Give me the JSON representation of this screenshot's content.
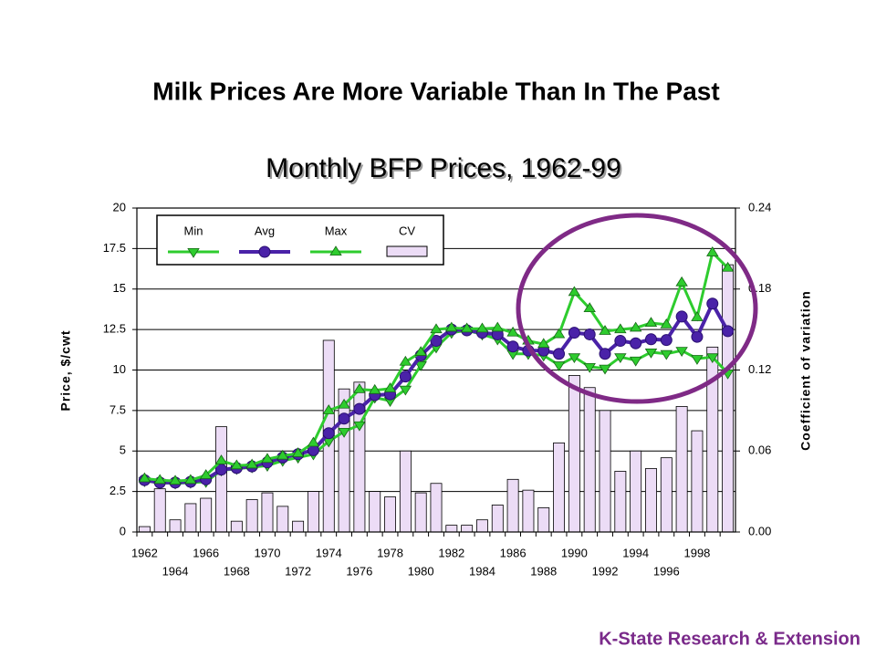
{
  "title": "Milk Prices Are More Variable Than In The Past",
  "footer": "K-State Research & Extension",
  "chart_data": {
    "type": "combo",
    "title": "Monthly BFP Prices, 1962-99",
    "y_label": "Price, $/cwt",
    "y2_label": "Coefficient of variation",
    "categories": [
      "1962",
      null,
      "1964",
      null,
      "1966",
      null,
      "1968",
      null,
      "1970",
      null,
      "1972",
      null,
      "1974",
      null,
      "1976",
      null,
      "1978",
      null,
      "1980",
      null,
      "1982",
      null,
      "1984",
      null,
      "1986",
      null,
      "1988",
      null,
      "1990",
      null,
      "1992",
      null,
      "1994",
      null,
      "1996",
      null,
      "1998",
      null,
      null
    ],
    "ylim": [
      0,
      20
    ],
    "yticks": [
      0,
      2.5,
      5,
      7.5,
      10,
      12.5,
      15,
      17.5,
      20
    ],
    "y2lim": [
      0,
      0.24
    ],
    "y2ticks": [
      {
        "value": 0,
        "label": "0.00"
      },
      {
        "value": 0.06,
        "label": "0.06"
      },
      {
        "value": 0.12,
        "label": "0.12"
      },
      {
        "value": 0.18,
        "label": "0.18"
      },
      {
        "value": 0.24,
        "label": "0.24"
      }
    ],
    "grid": true,
    "legend": "top-left",
    "series": [
      {
        "name": "Min",
        "type": "line",
        "marker": "triangle-down",
        "color": "#2ecc2e",
        "values": [
          3.15,
          3.05,
          3.0,
          3.05,
          3.1,
          3.8,
          3.9,
          4.0,
          4.1,
          4.4,
          4.6,
          4.8,
          5.6,
          6.2,
          6.6,
          8.3,
          8.1,
          8.8,
          10.3,
          11.4,
          12.3,
          12.45,
          12.2,
          11.9,
          11.0,
          11.0,
          10.9,
          10.3,
          10.8,
          10.2,
          10.1,
          10.8,
          10.6,
          11.1,
          11.0,
          11.2,
          10.7,
          10.8,
          9.8
        ]
      },
      {
        "name": "Avg",
        "type": "line",
        "marker": "circle",
        "color": "#4a22a8",
        "values": [
          3.2,
          3.05,
          3.05,
          3.1,
          3.25,
          3.85,
          3.95,
          4.05,
          4.3,
          4.6,
          4.8,
          5.05,
          6.1,
          7.0,
          7.6,
          8.45,
          8.5,
          9.6,
          10.9,
          11.8,
          12.5,
          12.45,
          12.3,
          12.2,
          11.45,
          11.2,
          11.2,
          11.0,
          12.3,
          12.2,
          11.0,
          11.8,
          11.65,
          11.9,
          11.85,
          13.3,
          12.05,
          14.1,
          12.4
        ]
      },
      {
        "name": "Max",
        "type": "line",
        "marker": "triangle-up",
        "color": "#2ecc2e",
        "values": [
          3.3,
          3.2,
          3.15,
          3.2,
          3.5,
          4.4,
          4.1,
          4.15,
          4.5,
          4.7,
          4.85,
          5.5,
          7.5,
          7.85,
          8.8,
          8.75,
          8.85,
          10.5,
          11.1,
          12.5,
          12.6,
          12.55,
          12.55,
          12.6,
          12.3,
          11.8,
          11.6,
          12.2,
          14.8,
          13.8,
          12.4,
          12.5,
          12.6,
          12.9,
          12.8,
          15.4,
          13.25,
          17.25,
          16.3
        ]
      },
      {
        "name": "CV",
        "type": "bar",
        "axis": "y2",
        "color": "#ecdcf6",
        "values": [
          0.004,
          0.032,
          0.009,
          0.021,
          0.025,
          0.078,
          0.008,
          0.024,
          0.029,
          0.019,
          0.008,
          0.03,
          0.142,
          0.106,
          0.111,
          0.03,
          0.026,
          0.06,
          0.029,
          0.036,
          0.005,
          0.005,
          0.009,
          0.02,
          0.039,
          0.031,
          0.018,
          0.066,
          0.116,
          0.107,
          0.09,
          0.045,
          0.06,
          0.047,
          0.055,
          0.093,
          0.075,
          0.137,
          0.198
        ]
      }
    ]
  }
}
